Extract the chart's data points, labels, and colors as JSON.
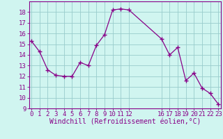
{
  "x": [
    0,
    1,
    2,
    3,
    4,
    5,
    6,
    7,
    8,
    9,
    10,
    11,
    12,
    16,
    17,
    18,
    19,
    20,
    21,
    22,
    23
  ],
  "y": [
    15.3,
    14.3,
    12.6,
    12.1,
    12.0,
    12.0,
    13.3,
    13.0,
    14.9,
    15.9,
    18.2,
    18.3,
    18.2,
    15.5,
    14.0,
    14.7,
    11.6,
    12.3,
    10.9,
    10.4,
    9.4
  ],
  "line_color": "#880088",
  "marker": "+",
  "bg_color": "#d0f5f0",
  "grid_color": "#99cccc",
  "xlabel": "Windchill (Refroidissement éolien,°C)",
  "xlabel_color": "#880088",
  "ylim": [
    9,
    19
  ],
  "yticks": [
    9,
    10,
    11,
    12,
    13,
    14,
    15,
    16,
    17,
    18
  ],
  "xticks": [
    0,
    1,
    2,
    3,
    4,
    5,
    6,
    7,
    8,
    9,
    10,
    11,
    12,
    16,
    17,
    18,
    19,
    20,
    21,
    22,
    23
  ],
  "tick_color": "#880088",
  "font_size": 6.5,
  "xlabel_font_size": 7.0
}
